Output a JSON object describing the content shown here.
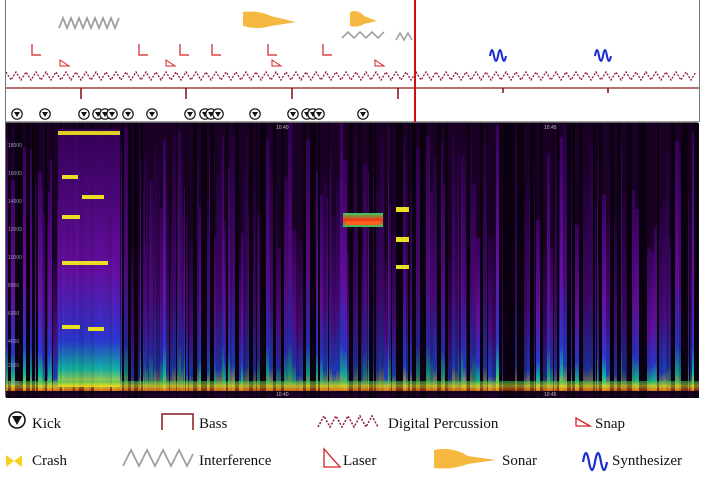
{
  "figure": {
    "timeline_ticks": [
      "10:40",
      "10:45"
    ],
    "spectrogram": {
      "time_ticks": [
        "10:40",
        "10:45"
      ],
      "freq_ticks": [
        "18000",
        "16000",
        "14000",
        "12000",
        "10000",
        "8000",
        "6000",
        "4000",
        "2000",
        "1000"
      ]
    },
    "colors": {
      "bass": "#8b1a1a",
      "digital_percussion": "#8b1a3a",
      "snap": "#d42020",
      "laser": "#d42020",
      "interference": "#a0a0a0",
      "sonar": "#f5b942",
      "synthesizer": "#1a2ad4",
      "crash": "#f2d21a",
      "marker": "#d01010"
    }
  },
  "legend": {
    "kick": "Kick",
    "bass": "Bass",
    "digital_percussion": "Digital Percussion",
    "snap": "Snap",
    "crash": "Crash",
    "interference": "Interference",
    "laser": "Laser",
    "sonar": "Sonar",
    "synthesizer": "Synthesizer"
  }
}
